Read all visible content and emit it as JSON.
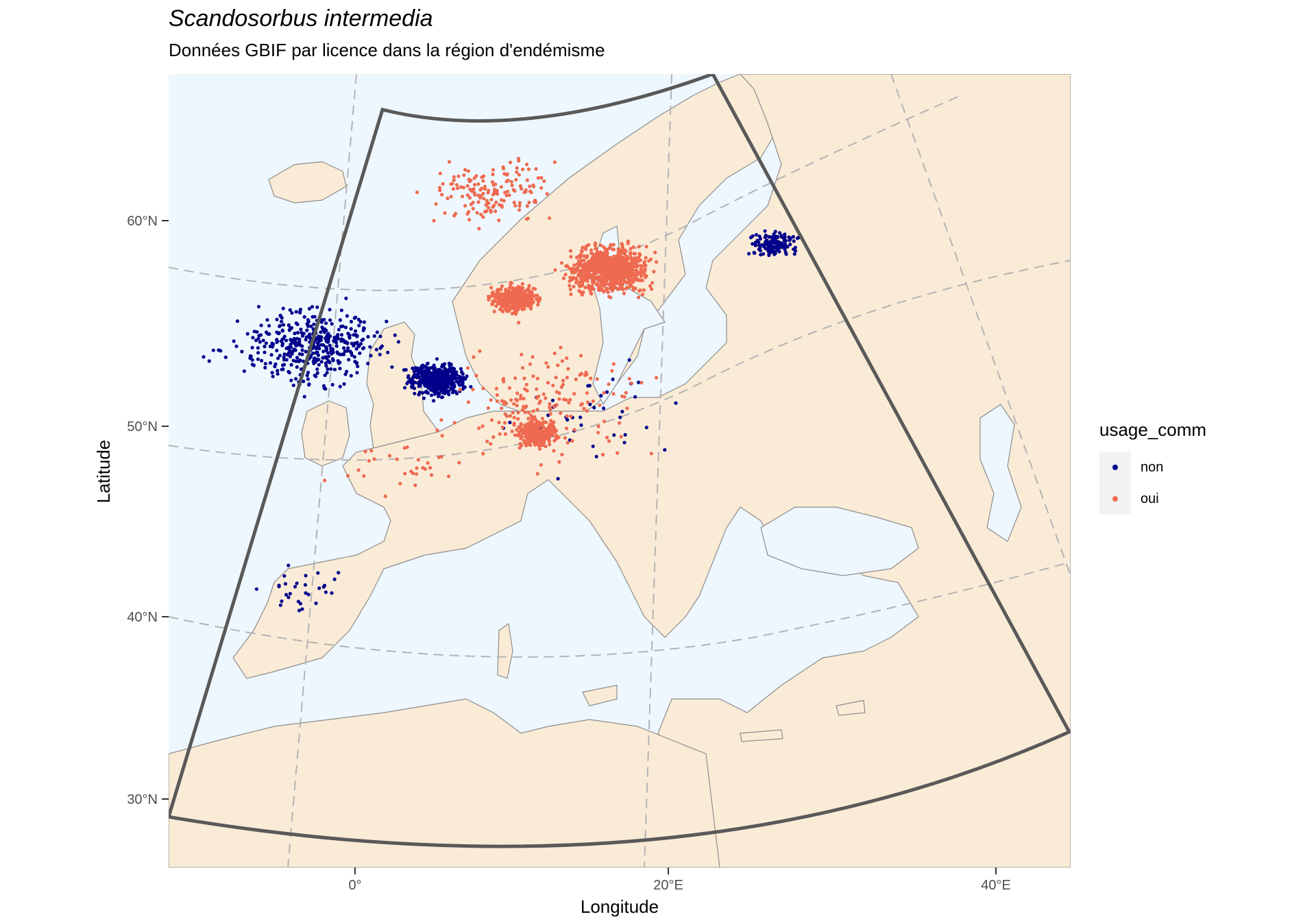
{
  "title": "Scandosorbus intermedia",
  "subtitle": "Données GBIF par licence dans la région d'endémisme",
  "axes": {
    "x_label": "Longitude",
    "y_label": "Latitude",
    "x_ticks": [
      "0°",
      "20°E",
      "40°E"
    ],
    "y_ticks": [
      "60°N",
      "50°N",
      "40°N",
      "30°N"
    ]
  },
  "legend": {
    "title": "usage_comm",
    "entries": [
      {
        "label": "non",
        "color": "#00008b"
      },
      {
        "label": "oui",
        "color": "#ee6a50"
      }
    ]
  },
  "colors": {
    "sea": "#eef7fd",
    "land": "#faebd7",
    "border": "#8c8c8c",
    "graticule": "#b3b3b3",
    "region_outline": "#595959"
  },
  "chart_data": {
    "type": "scatter",
    "projection": "conic",
    "xlim": [
      -12,
      44
    ],
    "ylim": [
      27,
      66
    ],
    "series": [
      {
        "name": "non",
        "clusters": [
          {
            "area": "Great Britain",
            "lon": -2.5,
            "lat": 53.5,
            "spread": 2.6,
            "n": 420
          },
          {
            "area": "Netherlands & Belgium",
            "lon": 5.0,
            "lat": 51.8,
            "spread": 1.2,
            "n": 420
          },
          {
            "area": "Estonia",
            "lon": 24.5,
            "lat": 58.8,
            "spread": 0.9,
            "n": 140
          },
          {
            "area": "Ireland",
            "lon": -8.0,
            "lat": 53.2,
            "spread": 1.0,
            "n": 8
          },
          {
            "area": "Spain",
            "lon": -3.5,
            "lat": 41.0,
            "spread": 2.0,
            "n": 30
          },
          {
            "area": "Central Europe",
            "lon": 15.0,
            "lat": 50.0,
            "spread": 4.0,
            "n": 40
          }
        ]
      },
      {
        "name": "oui",
        "clusters": [
          {
            "area": "Southern Sweden",
            "lon": 15.0,
            "lat": 57.5,
            "spread": 1.6,
            "n": 900
          },
          {
            "area": "Denmark",
            "lon": 9.5,
            "lat": 56.0,
            "spread": 0.9,
            "n": 450
          },
          {
            "area": "Bavaria",
            "lon": 11.5,
            "lat": 49.0,
            "spread": 0.9,
            "n": 300
          },
          {
            "area": "Norway coast",
            "lon": 8.0,
            "lat": 61.5,
            "spread": 2.5,
            "n": 160
          },
          {
            "area": "Central Europe",
            "lon": 12.0,
            "lat": 50.5,
            "spread": 4.0,
            "n": 180
          },
          {
            "area": "France",
            "lon": 3.0,
            "lat": 47.0,
            "spread": 3.0,
            "n": 30
          }
        ]
      }
    ]
  }
}
